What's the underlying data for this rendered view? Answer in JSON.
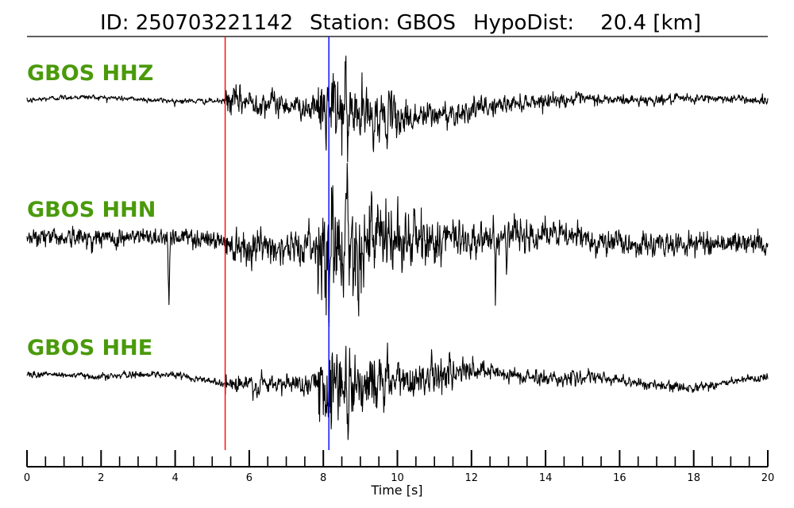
{
  "chart_data": {
    "type": "line",
    "title_parts": {
      "id": "ID: 250703221142",
      "station": "Station: GBOS",
      "hypodist": "HypoDist:    20.4 [km]"
    },
    "xlabel": "Time [s]",
    "xlim": [
      0,
      20
    ],
    "x_major_ticks": [
      0,
      2,
      4,
      6,
      8,
      10,
      12,
      14,
      16,
      18,
      20
    ],
    "x_minor_step": 0.5,
    "x_tick_labels": [
      "0",
      "2",
      "4",
      "6",
      "8",
      "10",
      "12",
      "14",
      "16",
      "18",
      "20"
    ],
    "picks": [
      {
        "phase": "P",
        "time": 5.35,
        "color": "#ff0000"
      },
      {
        "phase": "S",
        "time": 8.15,
        "color": "#0000ff"
      }
    ],
    "label_color": "#4a9a0a",
    "trace_color": "#000000",
    "series": [
      {
        "name": "GBOS HHZ",
        "channel": "HHZ"
      },
      {
        "name": "GBOS HHN",
        "channel": "HHN"
      },
      {
        "name": "GBOS HHE",
        "channel": "HHE"
      }
    ]
  }
}
